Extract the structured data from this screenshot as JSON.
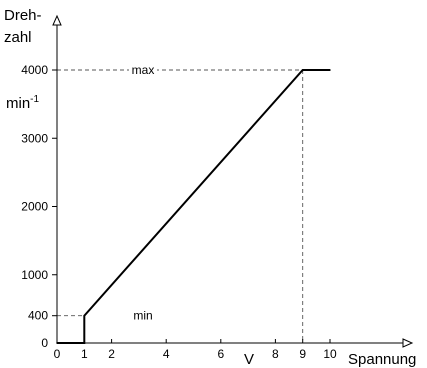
{
  "chart_data": {
    "type": "line",
    "ylabel_line1": "Dreh-",
    "ylabel_line2": "zahl",
    "yunit_base": "min",
    "yunit_exp": "-1",
    "xlabel": "Spannung",
    "xunit": "V",
    "xlim": [
      0,
      10.8
    ],
    "ylim": [
      0,
      4700
    ],
    "x_ticks": [
      0,
      1,
      2,
      4,
      6,
      8,
      9,
      10
    ],
    "x_tick_labels": [
      "0",
      "1",
      "2",
      "4",
      "6",
      "8",
      "9",
      "10"
    ],
    "y_ticks": [
      0,
      400,
      1000,
      2000,
      3000,
      4000
    ],
    "y_tick_labels": [
      "0",
      "400",
      "1000",
      "2000",
      "3000",
      "4000"
    ],
    "grid": false,
    "series": [
      {
        "x": [
          0,
          1,
          1,
          9,
          10
        ],
        "y": [
          0,
          0,
          400,
          4000,
          4000
        ]
      }
    ],
    "annotations": [
      {
        "label": "max",
        "x": 9,
        "y": 4000
      },
      {
        "label": "min",
        "x": 1,
        "y": 400
      }
    ]
  }
}
